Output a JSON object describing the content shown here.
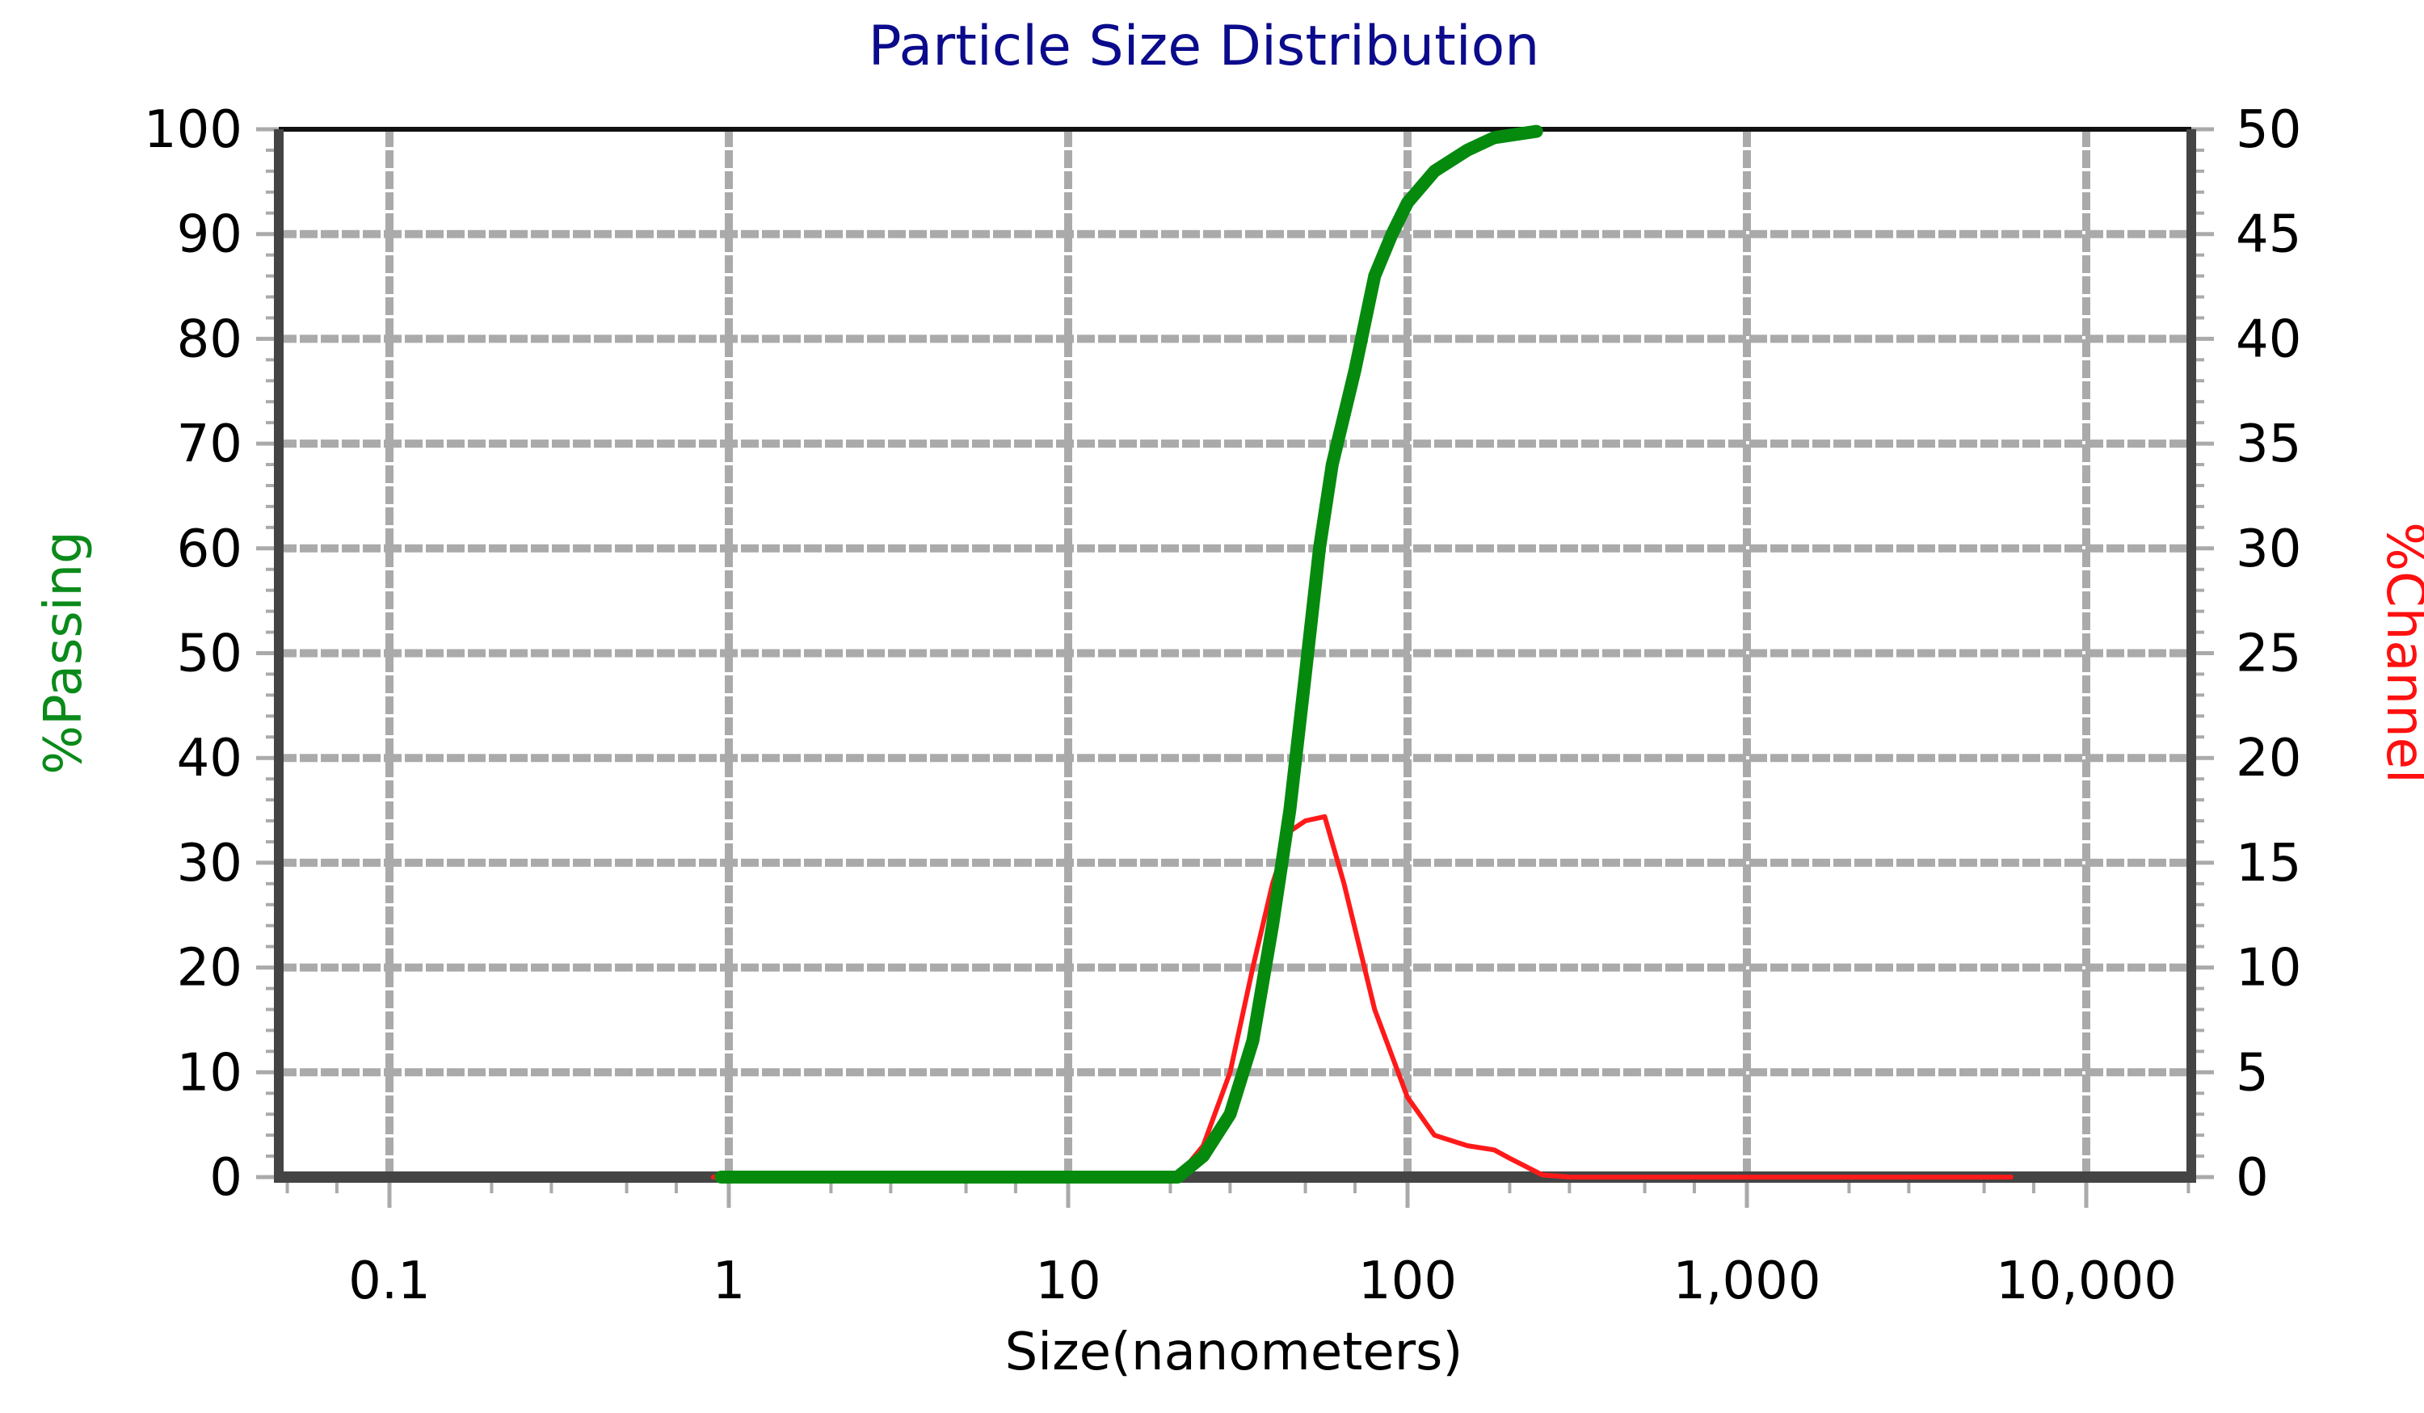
{
  "chart_data": {
    "type": "line",
    "title": "Particle Size Distribution",
    "xlabel": "Size(nanometers)",
    "ylabel": "%Passing",
    "ylabel_right": "%Channel",
    "x_scale": "log",
    "xlim": [
      0.047,
      20000
    ],
    "ylim": [
      0,
      100
    ],
    "ylim_right": [
      0,
      50
    ],
    "x_ticks": [
      0.1,
      1,
      10,
      100,
      1000,
      10000
    ],
    "x_tick_labels": [
      "0.1",
      "1",
      "10",
      "100",
      "1,000",
      "10,000"
    ],
    "y_ticks": [
      0,
      10,
      20,
      30,
      40,
      50,
      60,
      70,
      80,
      90,
      100
    ],
    "y_ticks_right": [
      0,
      5,
      10,
      15,
      20,
      25,
      30,
      35,
      40,
      45,
      50
    ],
    "grid": true,
    "series": [
      {
        "name": "%Passing",
        "axis": "left",
        "color": "#058a0e",
        "x": [
          0.95,
          5,
          10,
          21,
          25,
          30,
          35,
          40,
          45,
          50,
          55,
          60,
          70,
          80,
          90,
          100,
          120,
          150,
          180,
          240
        ],
        "values": [
          0,
          0,
          0,
          0,
          2,
          6,
          13,
          24,
          35,
          48,
          60,
          68,
          77,
          86,
          90,
          93,
          96,
          98,
          99.2,
          99.8
        ]
      },
      {
        "name": "%Channel",
        "axis": "right",
        "color": "#ff1a1a",
        "x": [
          0.9,
          5,
          10,
          21,
          25,
          30,
          35,
          40,
          45,
          50,
          57,
          65,
          80,
          100,
          120,
          150,
          180,
          200,
          250,
          300,
          1000,
          6000
        ],
        "values": [
          0,
          0,
          0,
          0,
          1.5,
          5,
          10,
          14,
          16.5,
          17,
          17.2,
          14,
          8,
          3.8,
          2,
          1.5,
          1.3,
          0.9,
          0.1,
          0,
          0,
          0
        ]
      }
    ]
  }
}
